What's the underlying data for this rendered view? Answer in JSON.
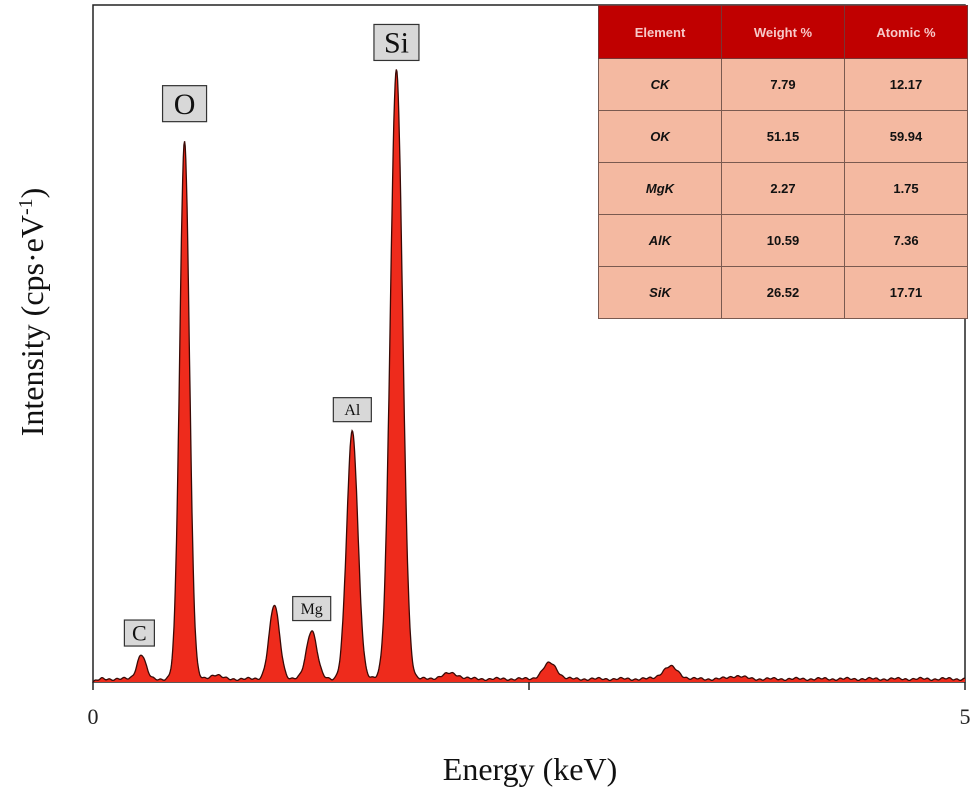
{
  "chart_data": {
    "type": "area",
    "xlabel": "Energy (keV)",
    "ylabel": "Intensity (cps·eV",
    "ylabel_superscript": "-1",
    "ylabel_close": ")",
    "xlim": [
      0,
      5
    ],
    "ylim": [
      0,
      100
    ],
    "x_ticks": [
      {
        "value": 0,
        "label": "0"
      },
      {
        "value": 2.5,
        "label": ""
      },
      {
        "value": 5,
        "label": "5"
      }
    ],
    "fill_color": "#ee2b1c",
    "line_color": "#3a0a06",
    "baseline": 0.5,
    "peaks": [
      {
        "x": 0.277,
        "height": 4.0,
        "width": 0.025
      },
      {
        "x": 0.525,
        "height": 88.0,
        "width": 0.028
      },
      {
        "x": 0.7,
        "height": 0.7,
        "width": 0.03
      },
      {
        "x": 1.04,
        "height": 12.0,
        "width": 0.03
      },
      {
        "x": 1.254,
        "height": 8.0,
        "width": 0.03
      },
      {
        "x": 1.487,
        "height": 40.5,
        "width": 0.032
      },
      {
        "x": 1.74,
        "height": 99.5,
        "width": 0.035
      },
      {
        "x": 2.05,
        "height": 0.9,
        "width": 0.05
      },
      {
        "x": 2.62,
        "height": 2.6,
        "width": 0.04
      },
      {
        "x": 3.31,
        "height": 2.0,
        "width": 0.045
      },
      {
        "x": 3.69,
        "height": 0.5,
        "width": 0.04
      }
    ],
    "peak_labels": [
      {
        "label": "C",
        "x": 0.266,
        "y": 8.0,
        "size": "medium"
      },
      {
        "label": "O",
        "x": 0.525,
        "y": 94.5,
        "size": "large"
      },
      {
        "label": "Mg",
        "x": 1.254,
        "y": 12.0,
        "size": "small"
      },
      {
        "label": "Al",
        "x": 1.487,
        "y": 44.5,
        "size": "small"
      },
      {
        "label": "Si",
        "x": 1.74,
        "y": 104.5,
        "size": "large"
      }
    ]
  },
  "table": {
    "headers": [
      "Element",
      "Weight %",
      "Atomic %"
    ],
    "rows": [
      [
        "CK",
        "7.79",
        "12.17"
      ],
      [
        "OK",
        "51.15",
        "59.94"
      ],
      [
        "MgK",
        "2.27",
        "1.75"
      ],
      [
        "AlK",
        "10.59",
        "7.36"
      ],
      [
        "SiK",
        "26.52",
        "17.71"
      ]
    ]
  }
}
